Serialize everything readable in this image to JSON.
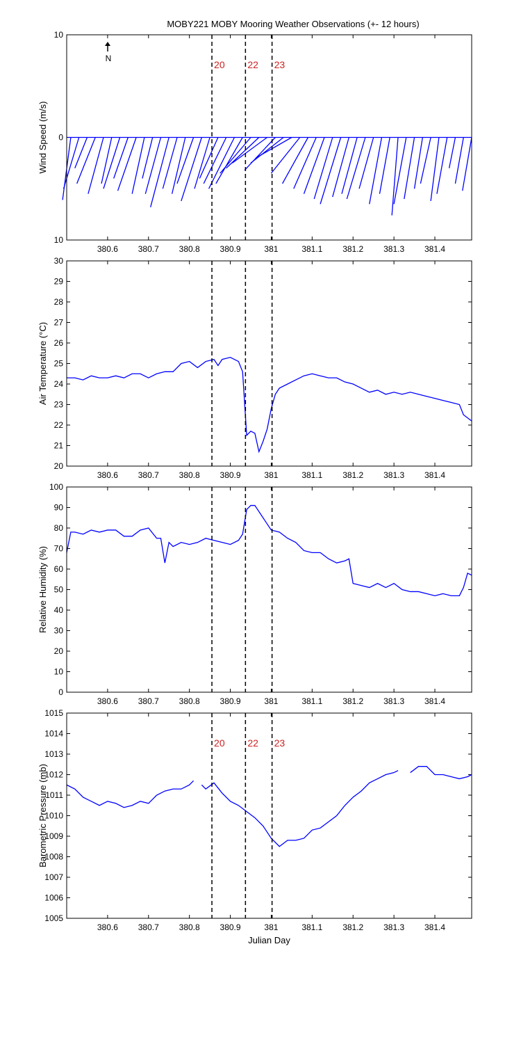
{
  "chart_data": [
    {
      "type": "stick",
      "title": "MOBY221 MOBY Mooring Weather Observations (+- 12 hours)",
      "y_label": "Wind Speed (m/s)",
      "north_label": "N",
      "color": "#0000ff",
      "xlim": [
        380.5,
        381.49
      ],
      "xticks": [
        380.6,
        380.7,
        380.8,
        380.9,
        381,
        381.1,
        381.2,
        381.3,
        381.4
      ],
      "ylim": [
        -10,
        10
      ],
      "yticks": [
        10,
        0,
        {
          "value": -10,
          "label": "10"
        }
      ],
      "markers": [
        {
          "x": 380.855,
          "label": "20"
        },
        {
          "x": 380.937,
          "label": "22"
        },
        {
          "x": 381.002,
          "label": "23"
        }
      ],
      "series": [
        {
          "name": "Wind",
          "x": [
            380.51,
            380.53,
            380.55,
            380.57,
            380.59,
            380.61,
            380.63,
            380.65,
            380.67,
            380.69,
            380.71,
            380.73,
            380.75,
            380.77,
            380.79,
            380.81,
            380.83,
            380.85,
            380.87,
            380.89,
            380.91,
            380.93,
            380.95,
            380.97,
            380.99,
            381.01,
            381.03,
            381.05,
            381.07,
            381.09,
            381.11,
            381.13,
            381.15,
            381.17,
            381.19,
            381.21,
            381.23,
            381.25,
            381.27,
            381.29,
            381.31,
            381.33,
            381.35,
            381.37,
            381.39,
            381.41,
            381.43,
            381.45,
            381.47,
            381.49
          ],
          "u": [
            -0.8,
            -1.5,
            -1.2,
            -1.8,
            -1.5,
            -1,
            -1.6,
            -1.4,
            -1.8,
            -1.2,
            -1,
            -1.5,
            -1.8,
            -1.4,
            -1.3,
            -1.6,
            -2,
            -1.5,
            -1.8,
            -2.2,
            -2.5,
            -2.6,
            -3,
            -3.2,
            -3.4,
            -3,
            -3.2,
            -3.5,
            -2.8,
            -2.5,
            -2.2,
            -2,
            -1.8,
            -2,
            -1.6,
            -1.5,
            -1.8,
            -1.4,
            -1.2,
            -1,
            -0.6,
            -1.2,
            -1,
            -0.8,
            -1,
            -0.8,
            -1,
            -0.6,
            -0.8,
            -0.9
          ],
          "v": [
            -6.1,
            -5,
            -3,
            -4.5,
            -5.5,
            -4.5,
            -5,
            -4,
            -5.2,
            -5.5,
            -4,
            -5.5,
            -6.8,
            -5,
            -5.5,
            -4.5,
            -6.2,
            -5,
            -4,
            -4.5,
            -5,
            -4.5,
            -3.5,
            -3,
            -2.5,
            -3.2,
            -2.5,
            -2,
            -3.5,
            -4.5,
            -5,
            -5.5,
            -6,
            -6.5,
            -5.8,
            -5.5,
            -6,
            -5,
            -6.5,
            -5.5,
            -7.6,
            -6.5,
            -6,
            -5,
            -4.5,
            -6.2,
            -5.5,
            -3,
            -4.5,
            -5.2
          ]
        }
      ]
    },
    {
      "type": "line",
      "y_label": "Air Temperature (°C)",
      "color": "#0000ff",
      "xlim": [
        380.5,
        381.49
      ],
      "xticks": [
        380.6,
        380.7,
        380.8,
        380.9,
        381,
        381.1,
        381.2,
        381.3,
        381.4
      ],
      "ylim": [
        20,
        30
      ],
      "yticks": [
        20,
        21,
        22,
        23,
        24,
        25,
        26,
        27,
        28,
        29,
        30
      ],
      "markers": [
        {
          "x": 380.855
        },
        {
          "x": 380.937
        },
        {
          "x": 381.002
        }
      ],
      "series": [
        {
          "name": "Air Temperature",
          "x": [
            380.5,
            380.52,
            380.54,
            380.56,
            380.58,
            380.6,
            380.62,
            380.64,
            380.66,
            380.68,
            380.7,
            380.72,
            380.74,
            380.76,
            380.78,
            380.8,
            380.82,
            380.84,
            380.86,
            380.87,
            380.88,
            380.9,
            380.92,
            380.93,
            380.94,
            380.95,
            380.96,
            380.97,
            380.98,
            380.99,
            381,
            381.01,
            381.02,
            381.04,
            381.06,
            381.08,
            381.1,
            381.12,
            381.14,
            381.16,
            381.18,
            381.2,
            381.22,
            381.24,
            381.26,
            381.28,
            381.3,
            381.32,
            381.34,
            381.36,
            381.38,
            381.4,
            381.42,
            381.44,
            381.46,
            381.47,
            381.49
          ],
          "values": [
            24.3,
            24.3,
            24.2,
            24.4,
            24.3,
            24.3,
            24.4,
            24.3,
            24.5,
            24.5,
            24.3,
            24.5,
            24.6,
            24.6,
            25.0,
            25.1,
            24.8,
            25.1,
            25.2,
            24.9,
            25.2,
            25.3,
            25.1,
            24.6,
            21.5,
            21.7,
            21.6,
            20.7,
            21.2,
            21.8,
            22.8,
            23.5,
            23.8,
            24.0,
            24.2,
            24.4,
            24.5,
            24.4,
            24.3,
            24.3,
            24.1,
            24.0,
            23.8,
            23.6,
            23.7,
            23.5,
            23.6,
            23.5,
            23.6,
            23.5,
            23.4,
            23.3,
            23.2,
            23.1,
            23.0,
            22.5,
            22.2
          ]
        }
      ]
    },
    {
      "type": "line",
      "y_label": "Relative Humidity (%)",
      "color": "#0000ff",
      "xlim": [
        380.5,
        381.49
      ],
      "xticks": [
        380.6,
        380.7,
        380.8,
        380.9,
        381,
        381.1,
        381.2,
        381.3,
        381.4
      ],
      "ylim": [
        0,
        100
      ],
      "yticks": [
        0,
        10,
        20,
        30,
        40,
        50,
        60,
        70,
        80,
        90,
        100
      ],
      "markers": [
        {
          "x": 380.855
        },
        {
          "x": 380.937
        },
        {
          "x": 381.002
        }
      ],
      "series": [
        {
          "name": "Relative Humidity",
          "x": [
            380.5,
            380.51,
            380.52,
            380.54,
            380.56,
            380.58,
            380.6,
            380.62,
            380.64,
            380.66,
            380.68,
            380.7,
            380.72,
            380.73,
            380.74,
            380.75,
            380.76,
            380.78,
            380.8,
            380.82,
            380.84,
            380.86,
            380.88,
            380.9,
            380.92,
            380.93,
            380.94,
            380.95,
            380.96,
            380.98,
            381,
            381.02,
            381.04,
            381.06,
            381.08,
            381.1,
            381.12,
            381.14,
            381.16,
            381.18,
            381.19,
            381.2,
            381.22,
            381.24,
            381.26,
            381.28,
            381.3,
            381.32,
            381.34,
            381.36,
            381.38,
            381.4,
            381.42,
            381.44,
            381.46,
            381.47,
            381.48,
            381.49
          ],
          "values": [
            68,
            78,
            78,
            77,
            79,
            78,
            79,
            79,
            76,
            76,
            79,
            80,
            75,
            75,
            63,
            73,
            71,
            73,
            72,
            73,
            75,
            74,
            73,
            72,
            74,
            77,
            89,
            91,
            91,
            85,
            79,
            78,
            75,
            73,
            69,
            68,
            68,
            65,
            63,
            64,
            65,
            53,
            52,
            51,
            53,
            51,
            53,
            50,
            49,
            49,
            48,
            47,
            48,
            47,
            47,
            51,
            58,
            57
          ]
        }
      ]
    },
    {
      "type": "line",
      "y_label": "Barometric Pressure (mb)",
      "x_label": "Julian Day",
      "color": "#0000ff",
      "xlim": [
        380.5,
        381.49
      ],
      "xticks": [
        380.6,
        380.7,
        380.8,
        380.9,
        381,
        381.1,
        381.2,
        381.3,
        381.4
      ],
      "ylim": [
        1005,
        1015
      ],
      "yticks": [
        1005,
        1006,
        1007,
        1008,
        1009,
        1010,
        1011,
        1012,
        1013,
        1014,
        1015
      ],
      "markers": [
        {
          "x": 380.855,
          "label": "20"
        },
        {
          "x": 380.937,
          "label": "22"
        },
        {
          "x": 381.002,
          "label": "23"
        }
      ],
      "series": [
        {
          "name": "Barometric Pressure",
          "x": [
            380.5,
            380.52,
            380.54,
            380.56,
            380.58,
            380.6,
            380.62,
            380.64,
            380.66,
            380.68,
            380.7,
            380.72,
            380.74,
            380.76,
            380.78,
            380.8,
            380.81,
            380.82,
            380.83,
            380.84,
            380.86,
            380.88,
            380.9,
            380.92,
            380.94,
            380.96,
            380.98,
            381,
            381.02,
            381.04,
            381.06,
            381.08,
            381.1,
            381.12,
            381.14,
            381.16,
            381.18,
            381.2,
            381.22,
            381.24,
            381.26,
            381.28,
            381.3,
            381.31,
            381.32,
            381.34,
            381.36,
            381.38,
            381.4,
            381.42,
            381.44,
            381.46,
            381.48,
            381.49
          ],
          "values": [
            1011.5,
            1011.3,
            1010.9,
            1010.7,
            1010.5,
            1010.7,
            1010.6,
            1010.4,
            1010.5,
            1010.7,
            1010.6,
            1011.0,
            1011.2,
            1011.3,
            1011.3,
            1011.5,
            1011.7,
            null,
            1011.5,
            1011.3,
            1011.6,
            1011.1,
            1010.7,
            1010.5,
            1010.2,
            1009.9,
            1009.5,
            1008.9,
            1008.5,
            1008.8,
            1008.8,
            1008.9,
            1009.3,
            1009.4,
            1009.7,
            1010.0,
            1010.5,
            1010.9,
            1011.2,
            1011.6,
            1011.8,
            1012.0,
            1012.1,
            1012.2,
            null,
            1012.1,
            1012.4,
            1012.4,
            1012.0,
            1012.0,
            1011.9,
            1011.8,
            1011.9,
            1012.0
          ]
        }
      ]
    }
  ]
}
